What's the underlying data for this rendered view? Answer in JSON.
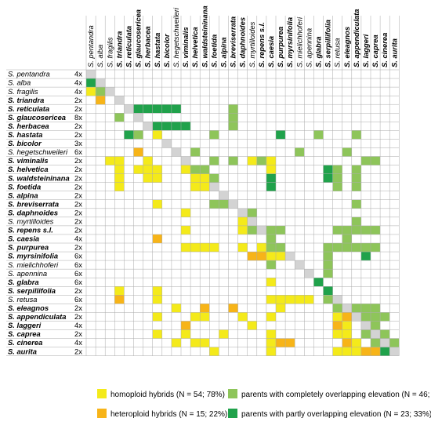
{
  "species": [
    {
      "genus": "S.",
      "epithet": "pentandra",
      "ploidy": "4x",
      "bold": false
    },
    {
      "genus": "S.",
      "epithet": "alba",
      "ploidy": "4x",
      "bold": false
    },
    {
      "genus": "S.",
      "epithet": "fragilis",
      "ploidy": "4x",
      "bold": false
    },
    {
      "genus": "S.",
      "epithet": "triandra",
      "ploidy": "2x",
      "bold": true
    },
    {
      "genus": "S.",
      "epithet": "reticulata",
      "ploidy": "2x",
      "bold": true
    },
    {
      "genus": "S.",
      "epithet": "glaucosericea",
      "ploidy": "8x",
      "bold": true
    },
    {
      "genus": "S.",
      "epithet": "herbacea",
      "ploidy": "2x",
      "bold": true
    },
    {
      "genus": "S.",
      "epithet": "hastata",
      "ploidy": "2x",
      "bold": true
    },
    {
      "genus": "S.",
      "epithet": "bicolor",
      "ploidy": "3x",
      "bold": true
    },
    {
      "genus": "S.",
      "epithet": "hegetschweileri",
      "ploidy": "6x",
      "bold": false
    },
    {
      "genus": "S.",
      "epithet": "viminalis",
      "ploidy": "2x",
      "bold": true
    },
    {
      "genus": "S.",
      "epithet": "helvetica",
      "ploidy": "2x",
      "bold": true
    },
    {
      "genus": "S.",
      "epithet": "waldsteininana",
      "ploidy": "2x",
      "bold": true
    },
    {
      "genus": "S.",
      "epithet": "foetida",
      "ploidy": "2x",
      "bold": true
    },
    {
      "genus": "S.",
      "epithet": "alpina",
      "ploidy": "2x",
      "bold": true
    },
    {
      "genus": "S.",
      "epithet": "breviserrata",
      "ploidy": "2x",
      "bold": true
    },
    {
      "genus": "S.",
      "epithet": "daphnoides",
      "ploidy": "2x",
      "bold": true
    },
    {
      "genus": "S.",
      "epithet": "myrtilloides",
      "ploidy": "2x",
      "bold": false
    },
    {
      "genus": "S.",
      "epithet": "repens s.l.",
      "ploidy": "2x",
      "bold": true
    },
    {
      "genus": "S.",
      "epithet": "caesia",
      "ploidy": "4x",
      "bold": true
    },
    {
      "genus": "S.",
      "epithet": "purpurea",
      "ploidy": "2x",
      "bold": true
    },
    {
      "genus": "S.",
      "epithet": "myrsinifolia",
      "ploidy": "6x",
      "bold": true
    },
    {
      "genus": "S.",
      "epithet": "mielichhoferi",
      "ploidy": "6x",
      "bold": false
    },
    {
      "genus": "S.",
      "epithet": "apennina",
      "ploidy": "6x",
      "bold": false
    },
    {
      "genus": "S.",
      "epithet": "glabra",
      "ploidy": "6x",
      "bold": true
    },
    {
      "genus": "S.",
      "epithet": "serpillifolia",
      "ploidy": "2x",
      "bold": true
    },
    {
      "genus": "S.",
      "epithet": "retusa",
      "ploidy": "6x",
      "bold": false
    },
    {
      "genus": "S.",
      "epithet": "eleagnos",
      "ploidy": "2x",
      "bold": true
    },
    {
      "genus": "S.",
      "epithet": "appendiculata",
      "ploidy": "2x",
      "bold": true
    },
    {
      "genus": "S.",
      "epithet": "laggeri",
      "ploidy": "4x",
      "bold": true
    },
    {
      "genus": "S.",
      "epithet": "caprea",
      "ploidy": "2x",
      "bold": true
    },
    {
      "genus": "S.",
      "epithet": "cinerea",
      "ploidy": "4x",
      "bold": true
    },
    {
      "genus": "S.",
      "epithet": "aurita",
      "ploidy": "2x",
      "bold": true
    }
  ],
  "colors": {
    "homoploid": "#f4ea1a",
    "heteroploid": "#f7b418",
    "complete": "#8ec55a",
    "partial": "#20a24b",
    "diagonal": "#d3d3d3",
    "grid": "#aaaaaa"
  },
  "cells": [
    [
      1,
      0,
      "P"
    ],
    [
      2,
      0,
      "Y"
    ],
    [
      2,
      1,
      "C"
    ],
    [
      3,
      1,
      "O"
    ],
    [
      5,
      3,
      "C"
    ],
    [
      4,
      15,
      "C"
    ],
    [
      5,
      15,
      "C"
    ],
    [
      6,
      15,
      "C"
    ],
    [
      4,
      5,
      "P"
    ],
    [
      4,
      6,
      "P"
    ],
    [
      4,
      7,
      "P"
    ],
    [
      4,
      8,
      "P"
    ],
    [
      4,
      9,
      "P"
    ],
    [
      6,
      7,
      "P"
    ],
    [
      6,
      8,
      "P"
    ],
    [
      6,
      9,
      "P"
    ],
    [
      6,
      10,
      "P"
    ],
    [
      7,
      4,
      "P"
    ],
    [
      7,
      5,
      "C"
    ],
    [
      7,
      7,
      "Y"
    ],
    [
      7,
      13,
      "C"
    ],
    [
      7,
      20,
      "P"
    ],
    [
      7,
      24,
      "C"
    ],
    [
      7,
      28,
      "C"
    ],
    [
      9,
      5,
      "O"
    ],
    [
      9,
      11,
      "C"
    ],
    [
      9,
      22,
      "C"
    ],
    [
      9,
      27,
      "C"
    ],
    [
      10,
      2,
      "Y"
    ],
    [
      10,
      3,
      "Y"
    ],
    [
      10,
      6,
      "Y"
    ],
    [
      10,
      13,
      "C"
    ],
    [
      10,
      15,
      "C"
    ],
    [
      10,
      17,
      "Y"
    ],
    [
      10,
      18,
      "C"
    ],
    [
      10,
      19,
      "Y"
    ],
    [
      10,
      29,
      "C"
    ],
    [
      10,
      30,
      "C"
    ],
    [
      11,
      3,
      "Y"
    ],
    [
      11,
      5,
      "Y"
    ],
    [
      11,
      6,
      "Y"
    ],
    [
      11,
      7,
      "Y"
    ],
    [
      11,
      10,
      "Y"
    ],
    [
      11,
      11,
      "C"
    ],
    [
      11,
      12,
      "C"
    ],
    [
      11,
      19,
      "Y"
    ],
    [
      11,
      25,
      "P"
    ],
    [
      11,
      26,
      "C"
    ],
    [
      11,
      28,
      "C"
    ],
    [
      12,
      3,
      "Y"
    ],
    [
      12,
      6,
      "Y"
    ],
    [
      12,
      7,
      "Y"
    ],
    [
      12,
      11,
      "Y"
    ],
    [
      12,
      12,
      "Y"
    ],
    [
      12,
      13,
      "C"
    ],
    [
      12,
      19,
      "P"
    ],
    [
      12,
      25,
      "P"
    ],
    [
      12,
      26,
      "C"
    ],
    [
      12,
      28,
      "C"
    ],
    [
      13,
      3,
      "Y"
    ],
    [
      13,
      11,
      "Y"
    ],
    [
      13,
      12,
      "Y"
    ],
    [
      13,
      19,
      "P"
    ],
    [
      13,
      26,
      "C"
    ],
    [
      13,
      28,
      "C"
    ],
    [
      15,
      7,
      "Y"
    ],
    [
      15,
      13,
      "C"
    ],
    [
      15,
      14,
      "C"
    ],
    [
      15,
      28,
      "C"
    ],
    [
      16,
      10,
      "Y"
    ],
    [
      16,
      17,
      "C"
    ],
    [
      17,
      16,
      "Y"
    ],
    [
      17,
      28,
      "C"
    ],
    [
      18,
      10,
      "Y"
    ],
    [
      18,
      16,
      "Y"
    ],
    [
      18,
      17,
      "C"
    ],
    [
      18,
      19,
      "C"
    ],
    [
      18,
      20,
      "C"
    ],
    [
      18,
      26,
      "C"
    ],
    [
      18,
      27,
      "C"
    ],
    [
      18,
      28,
      "C"
    ],
    [
      18,
      29,
      "C"
    ],
    [
      18,
      30,
      "C"
    ],
    [
      19,
      7,
      "O"
    ],
    [
      19,
      19,
      "C"
    ],
    [
      19,
      27,
      "C"
    ],
    [
      20,
      10,
      "Y"
    ],
    [
      20,
      11,
      "Y"
    ],
    [
      20,
      12,
      "Y"
    ],
    [
      20,
      13,
      "Y"
    ],
    [
      20,
      16,
      "Y"
    ],
    [
      20,
      18,
      "Y"
    ],
    [
      20,
      19,
      "C"
    ],
    [
      20,
      20,
      "C"
    ],
    [
      20,
      25,
      "C"
    ],
    [
      20,
      26,
      "C"
    ],
    [
      20,
      27,
      "C"
    ],
    [
      20,
      28,
      "C"
    ],
    [
      20,
      29,
      "C"
    ],
    [
      20,
      30,
      "C"
    ],
    [
      21,
      17,
      "O"
    ],
    [
      21,
      18,
      "O"
    ],
    [
      21,
      19,
      "Y"
    ],
    [
      21,
      20,
      "Y"
    ],
    [
      21,
      25,
      "C"
    ],
    [
      21,
      29,
      "P"
    ],
    [
      22,
      19,
      "C"
    ],
    [
      22,
      25,
      "C"
    ],
    [
      23,
      25,
      "C"
    ],
    [
      24,
      19,
      "Y"
    ],
    [
      24,
      24,
      "P"
    ],
    [
      25,
      3,
      "Y"
    ],
    [
      25,
      7,
      "Y"
    ],
    [
      25,
      25,
      "P"
    ],
    [
      26,
      3,
      "O"
    ],
    [
      26,
      7,
      "Y"
    ],
    [
      26,
      19,
      "Y"
    ],
    [
      26,
      20,
      "Y"
    ],
    [
      26,
      21,
      "Y"
    ],
    [
      26,
      22,
      "Y"
    ],
    [
      26,
      23,
      "Y"
    ],
    [
      26,
      25,
      "C"
    ],
    [
      27,
      9,
      "Y"
    ],
    [
      27,
      12,
      "O"
    ],
    [
      27,
      15,
      "O"
    ],
    [
      27,
      20,
      "Y"
    ],
    [
      27,
      26,
      "C"
    ],
    [
      27,
      28,
      "C"
    ],
    [
      27,
      29,
      "C"
    ],
    [
      27,
      30,
      "C"
    ],
    [
      28,
      7,
      "Y"
    ],
    [
      28,
      11,
      "Y"
    ],
    [
      28,
      12,
      "Y"
    ],
    [
      28,
      16,
      "Y"
    ],
    [
      28,
      19,
      "Y"
    ],
    [
      28,
      26,
      "Y"
    ],
    [
      28,
      27,
      "O"
    ],
    [
      28,
      29,
      "C"
    ],
    [
      28,
      30,
      "C"
    ],
    [
      28,
      31,
      "C"
    ],
    [
      29,
      10,
      "O"
    ],
    [
      29,
      17,
      "Y"
    ],
    [
      29,
      26,
      "O"
    ],
    [
      29,
      27,
      "Y"
    ],
    [
      29,
      30,
      "C"
    ],
    [
      30,
      7,
      "Y"
    ],
    [
      30,
      10,
      "Y"
    ],
    [
      30,
      14,
      "Y"
    ],
    [
      30,
      19,
      "Y"
    ],
    [
      30,
      26,
      "Y"
    ],
    [
      30,
      27,
      "Y"
    ],
    [
      30,
      29,
      "C"
    ],
    [
      30,
      31,
      "C"
    ],
    [
      31,
      9,
      "Y"
    ],
    [
      31,
      11,
      "Y"
    ],
    [
      31,
      12,
      "Y"
    ],
    [
      31,
      19,
      "Y"
    ],
    [
      31,
      20,
      "O"
    ],
    [
      31,
      21,
      "O"
    ],
    [
      31,
      27,
      "O"
    ],
    [
      31,
      28,
      "Y"
    ],
    [
      31,
      30,
      "C"
    ],
    [
      31,
      32,
      "C"
    ],
    [
      32,
      13,
      "Y"
    ],
    [
      32,
      19,
      "Y"
    ],
    [
      32,
      26,
      "Y"
    ],
    [
      32,
      27,
      "Y"
    ],
    [
      32,
      28,
      "Y"
    ],
    [
      32,
      29,
      "O"
    ],
    [
      32,
      30,
      "O"
    ],
    [
      32,
      31,
      "P"
    ]
  ],
  "legend": [
    {
      "key": "homoploid",
      "label": "homoploid hybrids (N = 54; 78%)"
    },
    {
      "key": "complete",
      "label": "parents with completely overlapping elevation (N = 46; 67%)"
    },
    {
      "key": "heteroploid",
      "label": "heteroploid hybrids (N = 15; 22%)"
    },
    {
      "key": "partial",
      "label": "parents with partly overlapping elevation (N = 23; 33%)"
    }
  ]
}
